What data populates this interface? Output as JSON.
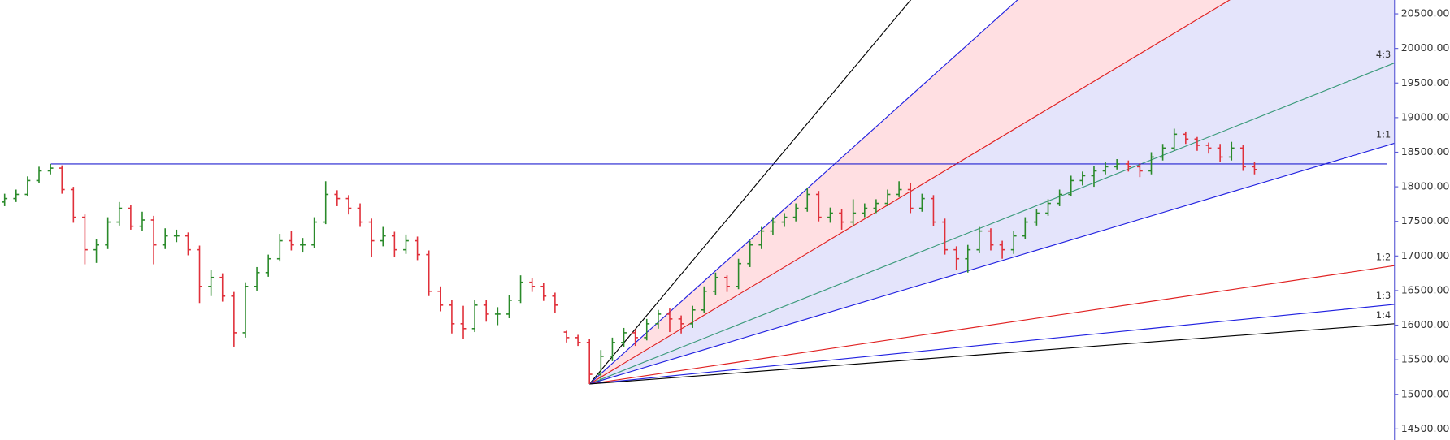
{
  "chart_data": {
    "type": "ohlc",
    "ylim": [
      14340,
      20700
    ],
    "yticks": [
      {
        "value": 14500,
        "label": "14500.00"
      },
      {
        "value": 15000,
        "label": "15000.00"
      },
      {
        "value": 15500,
        "label": "15500.00"
      },
      {
        "value": 16000,
        "label": "16000.00"
      },
      {
        "value": 16500,
        "label": "16500.00"
      },
      {
        "value": 17000,
        "label": "17000.00"
      },
      {
        "value": 17500,
        "label": "17500.00"
      },
      {
        "value": 18000,
        "label": "18000.00"
      },
      {
        "value": 18500,
        "label": "18500.00"
      },
      {
        "value": 19000,
        "label": "19000.00"
      },
      {
        "value": 19500,
        "label": "19500.00"
      },
      {
        "value": 20000,
        "label": "20000.00"
      },
      {
        "value": 20500,
        "label": "20500.00"
      }
    ],
    "up_color": "#2a8a2a",
    "down_color": "#e0303a",
    "open": [
      17780,
      17830,
      17890,
      18090,
      18230,
      18270,
      17960,
      17560,
      17090,
      17160,
      17490,
      17690,
      17430,
      17520,
      17160,
      17290,
      17290,
      17090,
      16560,
      16690,
      16420,
      15890,
      16560,
      16760,
      16960,
      17220,
      17160,
      17160,
      17490,
      17890,
      17830,
      17690,
      17490,
      17220,
      17290,
      17090,
      17220,
      17020,
      16490,
      16290,
      16020,
      15950,
      16290,
      16160,
      16160,
      16360,
      16620,
      16560,
      16420,
      15900,
      15820,
      15750,
      15290,
      15550,
      15750,
      15890,
      15820,
      16020,
      16160,
      16090,
      16020,
      16220,
      16490,
      16690,
      16560,
      16890,
      17160,
      17360,
      17490,
      17560,
      17690,
      17890,
      17560,
      17620,
      17490,
      17620,
      17690,
      17760,
      17890,
      17960,
      17690,
      17830,
      17490,
      17090,
      16960,
      17090,
      17360,
      17160,
      17090,
      17290,
      17490,
      17620,
      17760,
      17890,
      18090,
      18160,
      18230,
      18290,
      18330,
      18290,
      18230,
      18430,
      18560,
      18760,
      18690,
      18600,
      18560,
      18430,
      18560,
      18290
    ],
    "high": [
      17900,
      17960,
      18150,
      18290,
      18330,
      18310,
      18000,
      17600,
      17250,
      17560,
      17780,
      17740,
      17640,
      17580,
      17400,
      17380,
      17340,
      17150,
      16800,
      16750,
      16480,
      16620,
      16840,
      17020,
      17320,
      17360,
      17260,
      17560,
      18080,
      17950,
      17880,
      17760,
      17540,
      17420,
      17350,
      17310,
      17280,
      17080,
      16560,
      16360,
      16280,
      16360,
      16360,
      16260,
      16440,
      16720,
      16680,
      16610,
      16470,
      15920,
      15860,
      15800,
      15640,
      15820,
      15960,
      15940,
      16090,
      16220,
      16240,
      16140,
      16280,
      16560,
      16760,
      16720,
      16960,
      17220,
      17420,
      17560,
      17620,
      17760,
      17990,
      17940,
      17700,
      17680,
      17820,
      17760,
      17820,
      17960,
      18080,
      18060,
      17900,
      17880,
      17540,
      17140,
      17160,
      17420,
      17400,
      17220,
      17360,
      17560,
      17680,
      17820,
      17960,
      18160,
      18220,
      18300,
      18360,
      18400,
      18380,
      18340,
      18500,
      18620,
      18840,
      18800,
      18720,
      18640,
      18620,
      18650,
      18600,
      18360
    ],
    "low": [
      17720,
      17780,
      17860,
      18050,
      18180,
      17900,
      17480,
      16880,
      16900,
      17100,
      17440,
      17380,
      17360,
      16880,
      17100,
      17200,
      17010,
      16320,
      16420,
      16340,
      15690,
      15820,
      16500,
      16700,
      16920,
      17080,
      17050,
      17120,
      17460,
      17720,
      17600,
      17420,
      16980,
      17140,
      16980,
      17030,
      16940,
      16420,
      16200,
      15880,
      15800,
      15900,
      16050,
      16000,
      16100,
      16320,
      16480,
      16350,
      16180,
      15750,
      15700,
      15150,
      15200,
      15480,
      15680,
      15700,
      15780,
      15950,
      15900,
      15880,
      15960,
      16170,
      16440,
      16480,
      16520,
      16840,
      17100,
      17300,
      17420,
      17500,
      17640,
      17500,
      17480,
      17380,
      17440,
      17560,
      17620,
      17720,
      17850,
      17620,
      17640,
      17430,
      17020,
      16800,
      16760,
      17040,
      17080,
      16960,
      17030,
      17240,
      17440,
      17580,
      17720,
      17860,
      18020,
      18000,
      18180,
      18250,
      18220,
      18140,
      18180,
      18380,
      18520,
      18620,
      18520,
      18480,
      18360,
      18380,
      18230,
      18180
    ],
    "close": [
      17830,
      17890,
      18090,
      18230,
      18270,
      17960,
      17560,
      17090,
      17160,
      17490,
      17690,
      17430,
      17520,
      17160,
      17290,
      17290,
      17090,
      16560,
      16690,
      16420,
      15890,
      16560,
      16760,
      16960,
      17220,
      17160,
      17160,
      17490,
      17890,
      17830,
      17690,
      17490,
      17220,
      17290,
      17090,
      17220,
      17020,
      16490,
      16290,
      16020,
      15950,
      16290,
      16160,
      16160,
      16360,
      16620,
      16560,
      16420,
      16290,
      15820,
      15750,
      15290,
      15550,
      15750,
      15890,
      15820,
      16020,
      16160,
      16090,
      16020,
      16220,
      16490,
      16690,
      16560,
      16890,
      17160,
      17360,
      17490,
      17560,
      17690,
      17890,
      17560,
      17620,
      17490,
      17620,
      17690,
      17760,
      17890,
      17960,
      17690,
      17830,
      17490,
      17090,
      16960,
      17090,
      17360,
      17160,
      17090,
      17290,
      17490,
      17620,
      17760,
      17890,
      18090,
      18160,
      18230,
      18290,
      18330,
      18290,
      18230,
      18430,
      18560,
      18760,
      18690,
      18600,
      18560,
      18430,
      18560,
      18290,
      18250
    ],
    "hline": {
      "value": 18330,
      "color": "#2020d0"
    },
    "fan": {
      "origin": 15150,
      "lines": [
        {
          "label": null,
          "end": 29060,
          "color": "#000000"
        },
        {
          "label": null,
          "end": 25590,
          "color": "#2020e0",
          "fill": "#ffdfe2"
        },
        {
          "label": null,
          "end": 22130,
          "color": "#e02020",
          "fill": "#e4e4fb"
        },
        {
          "label": "4:3",
          "end": 19790,
          "color": "#3a9a7a",
          "fill": "#e4e4fb"
        },
        {
          "label": "1:1",
          "end": 18630,
          "color": "#2020e0"
        },
        {
          "label": "1:2",
          "end": 16860,
          "color": "#e02020"
        },
        {
          "label": "1:3",
          "end": 16300,
          "color": "#2020e0"
        },
        {
          "label": "1:4",
          "end": 16020,
          "color": "#000000"
        }
      ]
    }
  }
}
